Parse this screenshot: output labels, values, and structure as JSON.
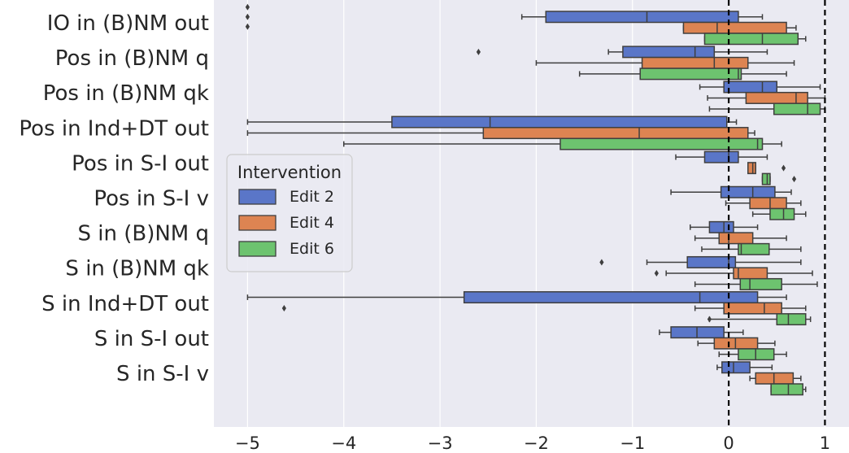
{
  "chart_data": {
    "type": "boxplot",
    "orientation": "horizontal",
    "categories": [
      "IO in (B)NM out",
      "Pos in (B)NM q",
      "Pos in (B)NM qk",
      "Pos in Ind+DT out",
      "Pos in S-I out",
      "Pos in S-I v",
      "S in (B)NM q",
      "S in (B)NM qk",
      "S in Ind+DT out",
      "S in S-I out",
      "S in S-I v"
    ],
    "xlim": [
      -5.35,
      1.25
    ],
    "xticks": [
      -5,
      -4,
      -3,
      -2,
      -1,
      0,
      1
    ],
    "xtick_labels": [
      "−5",
      "−4",
      "−3",
      "−2",
      "−1",
      "0",
      "1"
    ],
    "reference_lines": [
      0,
      1
    ],
    "grid": true,
    "legend": {
      "title": "Intervention",
      "placement": "center-left"
    },
    "series": [
      {
        "name": "Edit 2",
        "color": "#5a76c8",
        "boxes": [
          {
            "whislo": -2.15,
            "q1": -1.9,
            "med": -0.85,
            "q3": 0.1,
            "whishi": 0.35,
            "fliers": [
              -5.0,
              -5.0,
              -5.0
            ]
          },
          {
            "whislo": -1.25,
            "q1": -1.1,
            "med": -0.35,
            "q3": -0.15,
            "whishi": 0.4,
            "fliers": [
              -2.6
            ]
          },
          {
            "whislo": -0.3,
            "q1": -0.05,
            "med": 0.35,
            "q3": 0.5,
            "whishi": 0.95,
            "fliers": []
          },
          {
            "whislo": -5.0,
            "q1": -3.5,
            "med": -2.48,
            "q3": -0.02,
            "whishi": 0.08,
            "fliers": []
          },
          {
            "whislo": -0.55,
            "q1": -0.25,
            "med": 0.0,
            "q3": 0.1,
            "whishi": 0.4,
            "fliers": []
          },
          {
            "whislo": -0.6,
            "q1": -0.08,
            "med": 0.25,
            "q3": 0.48,
            "whishi": 0.65,
            "fliers": []
          },
          {
            "whislo": -0.4,
            "q1": -0.2,
            "med": -0.05,
            "q3": 0.05,
            "whishi": 0.3,
            "fliers": []
          },
          {
            "whislo": -0.85,
            "q1": -0.43,
            "med": 0.0,
            "q3": 0.07,
            "whishi": 0.75,
            "fliers": [
              -1.32
            ]
          },
          {
            "whislo": -5.0,
            "q1": -2.75,
            "med": -0.3,
            "q3": 0.3,
            "whishi": 0.6,
            "fliers": []
          },
          {
            "whislo": -0.72,
            "q1": -0.6,
            "med": -0.33,
            "q3": -0.05,
            "whishi": 0.15,
            "fliers": []
          },
          {
            "whislo": -0.12,
            "q1": -0.07,
            "med": 0.05,
            "q3": 0.22,
            "whishi": 0.45,
            "fliers": []
          }
        ]
      },
      {
        "name": "Edit 4",
        "color": "#dd8452",
        "boxes": [
          {
            "whislo": -0.47,
            "q1": -0.47,
            "med": -0.12,
            "q3": 0.6,
            "whishi": 0.7,
            "fliers": []
          },
          {
            "whislo": -2.0,
            "q1": -0.9,
            "med": -0.15,
            "q3": 0.2,
            "whishi": 0.68,
            "fliers": []
          },
          {
            "whislo": -0.22,
            "q1": 0.18,
            "med": 0.7,
            "q3": 0.82,
            "whishi": 1.0,
            "fliers": []
          },
          {
            "whislo": -5.0,
            "q1": -2.55,
            "med": -0.93,
            "q3": 0.2,
            "whishi": 0.27,
            "fliers": []
          },
          {
            "whislo": 0.2,
            "q1": 0.2,
            "med": 0.25,
            "q3": 0.28,
            "whishi": 0.28,
            "fliers": [
              0.57
            ]
          },
          {
            "whislo": -0.03,
            "q1": 0.22,
            "med": 0.43,
            "q3": 0.6,
            "whishi": 0.75,
            "fliers": []
          },
          {
            "whislo": -0.35,
            "q1": -0.1,
            "med": 0.0,
            "q3": 0.25,
            "whishi": 0.6,
            "fliers": []
          },
          {
            "whislo": -0.65,
            "q1": 0.05,
            "med": 0.1,
            "q3": 0.4,
            "whishi": 0.87,
            "fliers": [
              -0.75
            ]
          },
          {
            "whislo": -0.35,
            "q1": -0.05,
            "med": 0.37,
            "q3": 0.55,
            "whishi": 0.8,
            "fliers": [
              -4.62
            ]
          },
          {
            "whislo": -0.32,
            "q1": -0.15,
            "med": 0.07,
            "q3": 0.3,
            "whishi": 0.48,
            "fliers": []
          },
          {
            "whislo": 0.22,
            "q1": 0.28,
            "med": 0.47,
            "q3": 0.67,
            "whishi": 0.75,
            "fliers": []
          }
        ]
      },
      {
        "name": "Edit 6",
        "color": "#6dc36f",
        "boxes": [
          {
            "whislo": -0.25,
            "q1": -0.25,
            "med": 0.35,
            "q3": 0.72,
            "whishi": 0.8,
            "fliers": []
          },
          {
            "whislo": -1.55,
            "q1": -0.92,
            "med": 0.1,
            "q3": 0.13,
            "whishi": 0.6,
            "fliers": []
          },
          {
            "whislo": -0.2,
            "q1": 0.47,
            "med": 0.82,
            "q3": 0.95,
            "whishi": 1.0,
            "fliers": []
          },
          {
            "whislo": -4.0,
            "q1": -1.75,
            "med": 0.3,
            "q3": 0.35,
            "whishi": 0.55,
            "fliers": []
          },
          {
            "whislo": 0.35,
            "q1": 0.35,
            "med": 0.4,
            "q3": 0.43,
            "whishi": 0.43,
            "fliers": [
              0.68
            ]
          },
          {
            "whislo": 0.25,
            "q1": 0.43,
            "med": 0.57,
            "q3": 0.68,
            "whishi": 0.8,
            "fliers": []
          },
          {
            "whislo": -0.28,
            "q1": 0.1,
            "med": 0.13,
            "q3": 0.42,
            "whishi": 0.75,
            "fliers": []
          },
          {
            "whislo": -0.35,
            "q1": 0.12,
            "med": 0.22,
            "q3": 0.55,
            "whishi": 0.92,
            "fliers": []
          },
          {
            "whislo": -0.2,
            "q1": 0.5,
            "med": 0.62,
            "q3": 0.8,
            "whishi": 0.85,
            "fliers": [
              -0.2
            ]
          },
          {
            "whislo": -0.1,
            "q1": 0.1,
            "med": 0.28,
            "q3": 0.47,
            "whishi": 0.6,
            "fliers": []
          },
          {
            "whislo": 0.44,
            "q1": 0.44,
            "med": 0.62,
            "q3": 0.77,
            "whishi": 0.8,
            "fliers": []
          }
        ]
      }
    ]
  }
}
